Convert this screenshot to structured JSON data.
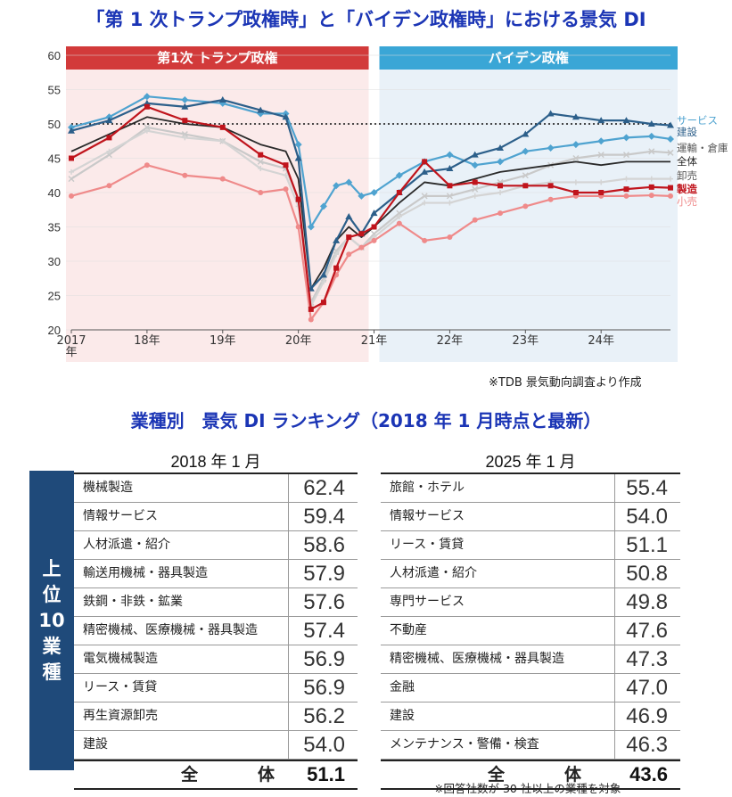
{
  "chart_title": "「第 1 次トランプ政権時」と「バイデン政権時」における景気 DI",
  "ranking_title": "業種別　景気 DI ランキング（2018 年 1 月時点と最新）",
  "chart_source": "※TDB 景気動向調査より作成",
  "table_note": "※回答社数が 30 社以上の業種を対象",
  "chart_data": {
    "type": "line",
    "title": "「第 1 次トランプ政権時」と「バイデン政権時」における景気 DI",
    "ylim": [
      20,
      60
    ],
    "yticks": [
      20,
      25,
      30,
      35,
      40,
      45,
      50,
      55,
      60
    ],
    "x_labels": [
      {
        "label": "2017\n年",
        "month": 0
      },
      {
        "label": "18年",
        "month": 12
      },
      {
        "label": "19年",
        "month": 24
      },
      {
        "label": "20年",
        "month": 36
      },
      {
        "label": "21年",
        "month": 48
      },
      {
        "label": "22年",
        "month": 60
      },
      {
        "label": "23年",
        "month": 72
      },
      {
        "label": "24年",
        "month": 84
      }
    ],
    "periods": [
      {
        "name": "第1次 トランプ政権",
        "start": 0,
        "end": 48,
        "band_color": "#d23a3a",
        "bg_color": "#fbeaea"
      },
      {
        "name": "バイデン政権",
        "start": 48,
        "end": 95,
        "band_color": "#3aa6d6",
        "bg_color": "#e9f1f8"
      }
    ],
    "reference_line": 50,
    "x_anchor_months": [
      0,
      6,
      12,
      18,
      24,
      30,
      34,
      36,
      38,
      40,
      42,
      44,
      46,
      48,
      52,
      56,
      60,
      64,
      68,
      72,
      76,
      80,
      84,
      88,
      92,
      95
    ],
    "series": [
      {
        "name": "サービス",
        "color": "#4fa3d0",
        "marker": "diamond",
        "values": [
          49.5,
          51.0,
          54.0,
          53.5,
          53.0,
          51.5,
          51.5,
          47.0,
          35.0,
          38.0,
          41.0,
          41.5,
          39.5,
          40.0,
          42.5,
          44.5,
          45.5,
          44.0,
          44.5,
          46.0,
          46.5,
          47.0,
          47.5,
          48.0,
          48.2,
          47.8
        ]
      },
      {
        "name": "建設",
        "color": "#2c5f8a",
        "marker": "triangle",
        "values": [
          49.0,
          50.5,
          53.0,
          52.5,
          53.5,
          52.0,
          51.0,
          45.0,
          26.0,
          28.0,
          33.0,
          36.5,
          34.0,
          37.0,
          40.0,
          43.0,
          43.5,
          45.5,
          46.5,
          48.5,
          51.5,
          51.0,
          50.5,
          50.5,
          50.0,
          49.8
        ]
      },
      {
        "name": "運輸・倉庫",
        "color": "#c9c9c9",
        "marker": "x",
        "values": [
          42.0,
          45.5,
          49.5,
          48.5,
          47.5,
          44.5,
          43.5,
          39.0,
          24.0,
          27.5,
          31.5,
          33.5,
          32.0,
          34.0,
          37.0,
          39.5,
          39.5,
          40.5,
          41.5,
          42.5,
          44.0,
          45.0,
          45.5,
          45.5,
          46.0,
          45.8
        ]
      },
      {
        "name": "全体",
        "color": "#2a2a2a",
        "marker": "none",
        "values": [
          46.0,
          48.5,
          51.0,
          50.0,
          49.5,
          47.0,
          46.0,
          42.0,
          26.0,
          29.0,
          33.0,
          35.0,
          33.5,
          35.0,
          38.5,
          41.5,
          41.0,
          42.0,
          43.0,
          43.5,
          44.0,
          44.5,
          44.0,
          44.5,
          44.5,
          44.5
        ]
      },
      {
        "name": "卸売",
        "color": "#d4d4d4",
        "marker": "plus",
        "values": [
          43.0,
          46.0,
          49.0,
          48.0,
          47.5,
          43.5,
          42.5,
          38.0,
          23.5,
          27.0,
          31.0,
          33.5,
          32.0,
          33.5,
          36.5,
          38.5,
          38.5,
          39.5,
          40.0,
          41.0,
          41.5,
          41.5,
          41.5,
          42.0,
          42.0,
          42.0
        ]
      },
      {
        "name": "製造",
        "color": "#c0141c",
        "marker": "square",
        "values": [
          45.0,
          48.0,
          52.5,
          50.5,
          49.5,
          45.5,
          44.0,
          39.0,
          23.0,
          24.0,
          29.0,
          33.5,
          34.0,
          35.0,
          40.0,
          44.5,
          41.0,
          41.5,
          41.0,
          41.0,
          41.0,
          40.0,
          40.0,
          40.5,
          40.8,
          40.7
        ]
      },
      {
        "name": "小売",
        "color": "#ef8a8a",
        "marker": "circle",
        "values": [
          39.5,
          41.0,
          44.0,
          42.5,
          42.0,
          40.0,
          40.5,
          35.0,
          21.5,
          24.0,
          28.0,
          31.0,
          32.0,
          33.0,
          35.5,
          33.0,
          33.5,
          36.0,
          37.0,
          38.0,
          39.0,
          39.5,
          39.5,
          39.5,
          39.6,
          39.5
        ]
      }
    ]
  },
  "side_label": [
    "上",
    "位",
    "10",
    "業",
    "種"
  ],
  "tables": [
    {
      "period": "2018 年 1 月",
      "rows": [
        {
          "name": "機械製造",
          "value": "62.4"
        },
        {
          "name": "情報サービス",
          "value": "59.4"
        },
        {
          "name": "人材派遣・紹介",
          "value": "58.6"
        },
        {
          "name": "輸送用機械・器具製造",
          "value": "57.9"
        },
        {
          "name": "鉄鋼・非鉄・鉱業",
          "value": "57.6"
        },
        {
          "name": "精密機械、医療機械・器具製造",
          "value": "57.4"
        },
        {
          "name": "電気機械製造",
          "value": "56.9"
        },
        {
          "name": "リース・賃貸",
          "value": "56.9"
        },
        {
          "name": "再生資源卸売",
          "value": "56.2"
        },
        {
          "name": "建設",
          "value": "54.0"
        }
      ],
      "total_label": "全　体",
      "total_value": "51.1"
    },
    {
      "period": "2025 年 1 月",
      "rows": [
        {
          "name": "旅館・ホテル",
          "value": "55.4"
        },
        {
          "name": "情報サービス",
          "value": "54.0"
        },
        {
          "name": "リース・賃貸",
          "value": "51.1"
        },
        {
          "name": "人材派遣・紹介",
          "value": "50.8"
        },
        {
          "name": "専門サービス",
          "value": "49.8"
        },
        {
          "name": "不動産",
          "value": "47.6"
        },
        {
          "name": "精密機械、医療機械・器具製造",
          "value": "47.3"
        },
        {
          "name": "金融",
          "value": "47.0"
        },
        {
          "name": "建設",
          "value": "46.9"
        },
        {
          "name": "メンテナンス・警備・検査",
          "value": "46.3"
        }
      ],
      "total_label": "全　体",
      "total_value": "43.6"
    }
  ]
}
